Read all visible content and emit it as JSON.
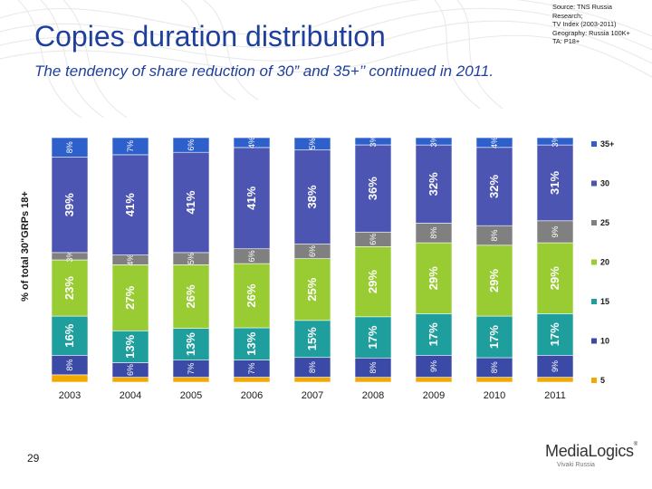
{
  "slide": {
    "title": "Copies duration distribution",
    "subtitle": "The tendency of share reduction of 30” and 35+’’ continued in 2011.",
    "source_lines": [
      "Source: TNS Russia",
      "Research;",
      "TV Index (2003-2011)",
      "Geography: Russia 100K+",
      "TA: P18+"
    ],
    "page_number": "29",
    "logo": {
      "name": "MediaLogics",
      "tm": "®",
      "tagline": "Vivaki Russia"
    }
  },
  "colors": {
    "5": "#f2a900",
    "10": "#3b4aa6",
    "15": "#1f9e9e",
    "20": "#99cc33",
    "25": "#808080",
    "30": "#4d55b3",
    "35+": "#2e60cc",
    "title": "#1f3f9c"
  },
  "chart_data": {
    "type": "bar",
    "stacked": true,
    "ylabel": "% of total 30\"GRPs 18+",
    "ylim": [
      0,
      100
    ],
    "categories": [
      "2003",
      "2004",
      "2005",
      "2006",
      "2007",
      "2008",
      "2009",
      "2010",
      "2011"
    ],
    "series": [
      {
        "name": "5",
        "values": [
          3,
          2,
          2,
          2,
          2,
          2,
          2,
          2,
          2
        ],
        "labels": [
          "",
          "",
          "",
          "",
          "",
          "",
          "",
          "",
          ""
        ]
      },
      {
        "name": "10",
        "values": [
          8,
          6,
          7,
          7,
          8,
          8,
          9,
          8,
          9
        ],
        "labels": [
          "8%",
          "6%",
          "7%",
          "7%",
          "8%",
          "8%",
          "9%",
          "8%",
          "9%"
        ]
      },
      {
        "name": "15",
        "values": [
          16,
          13,
          13,
          13,
          15,
          17,
          17,
          17,
          17
        ],
        "labels": [
          "16%",
          "13%",
          "13%",
          "13%",
          "15%",
          "17%",
          "17%",
          "17%",
          "17%"
        ]
      },
      {
        "name": "20",
        "values": [
          23,
          27,
          26,
          26,
          25,
          29,
          29,
          29,
          29
        ],
        "labels": [
          "23%",
          "27%",
          "26%",
          "26%",
          "25%",
          "29%",
          "29%",
          "29%",
          "29%"
        ]
      },
      {
        "name": "25",
        "values": [
          3,
          4,
          5,
          6,
          6,
          6,
          8,
          8,
          9
        ],
        "labels": [
          "3%",
          "4%",
          "5%",
          "6%",
          "6%",
          "6%",
          "8%",
          "8%",
          "9%"
        ]
      },
      {
        "name": "30",
        "values": [
          39,
          41,
          41,
          41,
          38,
          36,
          32,
          32,
          31
        ],
        "labels": [
          "39%",
          "41%",
          "41%",
          "41%",
          "38%",
          "36%",
          "32%",
          "32%",
          "31%"
        ]
      },
      {
        "name": "35+",
        "values": [
          8,
          7,
          6,
          4,
          5,
          3,
          3,
          4,
          3
        ],
        "labels": [
          "8%",
          "7%",
          "6%",
          "4%",
          "5%",
          "3%",
          "3%",
          "4%",
          "3%"
        ]
      }
    ],
    "legend": {
      "position": "right",
      "order": [
        "35+",
        "30",
        "25",
        "20",
        "15",
        "10",
        "5"
      ]
    }
  }
}
